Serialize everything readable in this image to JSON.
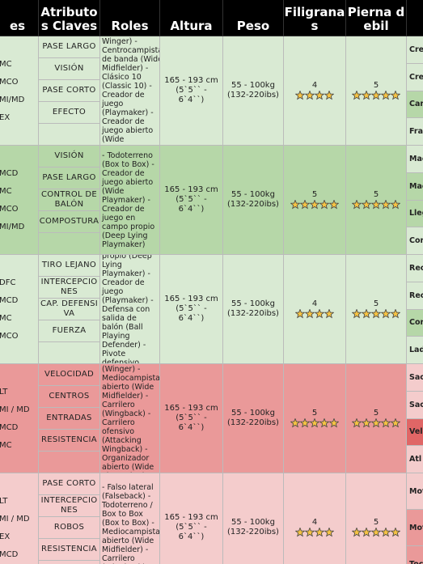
{
  "header": [
    "es",
    "Atributos Claves",
    "Roles",
    "Altura",
    "Peso",
    "Filigranas",
    "Pierna debil",
    "A"
  ],
  "rows": [
    {
      "positions": [
        "MC",
        "MCO",
        "MI/MD",
        "EX"
      ],
      "attributes": [
        "PASE LARGO",
        "VISIÓN",
        "PASE CORTO",
        "EFECTO"
      ],
      "roles": "Winger) - Centrocampista de banda (Wide Midfielder) - Clásico 10 (Classic 10) - Creador de juego (Playmaker) - Creador de juego abierto (Wide",
      "height": "165 - 193 cm (5`5`` - 6`4``)",
      "weight": "55 - 100kg (132-220ibs)",
      "skill_moves": 4,
      "weak_foot": 5,
      "traits": [
        "Cre",
        "Cre",
        "Car Arc",
        "Fra (Sn"
      ]
    },
    {
      "positions": [
        "MCD",
        "MC",
        "MCO",
        "MI/MD"
      ],
      "attributes": [
        "VISIÓN",
        "PASE LARGO",
        "CONTROL DE BALÓN",
        "COMPOSTURA"
      ],
      "roles": "- Todoterreno (Box to Box) - Creador de juego abierto (Wide Playmaker) - Creador de juego en campo propio (Deep Lying Playmaker)",
      "height": "165 - 193 cm (5`5`` - 6`4``)",
      "weight": "55 - 100kg (132-220ibs)",
      "skill_moves": 5,
      "weak_foot": 5,
      "traits": [
        "Mae",
        "Mae",
        "Lleg (Cra",
        "Cor (He"
      ]
    },
    {
      "positions": [
        "DFC",
        "MCD",
        "MC",
        "MCO"
      ],
      "attributes": [
        "TIRO LEJANO",
        "INTERCEPCIONES",
        "CAP. DEFENSIVA",
        "FUERZA"
      ],
      "roles": "en campo propio (Deep Lying Playmaker) - Creador de juego (Playmaker) - Defensa con salida de balón (Ball Playing Defender) - Pivote defensivo (Holding)",
      "height": "165 - 193 cm (5`5`` - 6`4``)",
      "weight": "55 - 100kg (132-220ibs)",
      "skill_moves": 4,
      "weak_foot": 5,
      "traits": [
        "Rec (Re",
        "Rec (Re",
        "Cor (Dr",
        "Lad (Th"
      ]
    },
    {
      "positions": [
        "LT",
        "MI / MD",
        "MCD",
        "MC"
      ],
      "attributes": [
        "VELOCIDAD",
        "CENTROS",
        "ENTRADAS",
        "RESISTENCIA"
      ],
      "roles": "- Extremo (Winger) - Mediocampista abierto (Wide Midfielder) - Carrilero (Wingback) - Carrilero ofensivo (Attacking Wingback) - Organizador abierto (Wide Playmaker)",
      "height": "165 - 193 cm (5`5`` - 6`4``)",
      "weight": "55 - 100kg (132-220ibs)",
      "skill_moves": 5,
      "weak_foot": 5,
      "traits": [
        "Sac (Ma",
        "Sac (Ma",
        "Vel (Sp",
        "Atl (At"
      ]
    },
    {
      "positions": [
        "LT",
        "MI / MD",
        "EX",
        "MCD"
      ],
      "attributes": [
        "PASE CORTO",
        "INTERCEPCIONES",
        "ROBOS",
        "RESISTENCIA"
      ],
      "roles": "- Falso lateral (Falseback) - Todoterreno / Box to Box (Box to Box) - Mediocampista abierto (Wide Midfielder) - Carrilero (Wingback)",
      "height": "165 - 193 cm (5`5`` - 6`4``)",
      "weight": "55 - 100kg (132-220ibs)",
      "skill_moves": 4,
      "weak_foot": 5,
      "traits": [
        "Mot (En",
        "Mot (En",
        "Toc (Ev"
      ]
    }
  ]
}
